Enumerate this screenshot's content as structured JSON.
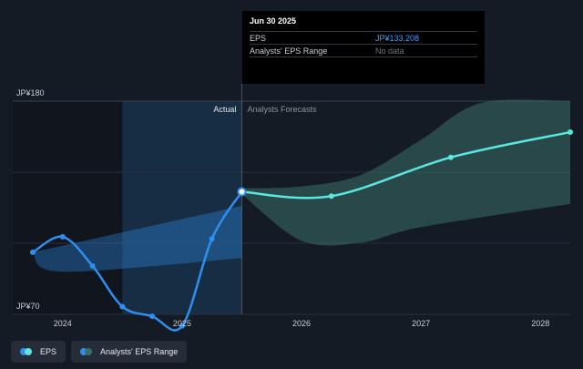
{
  "chart_data": {
    "type": "line",
    "y_ticks": [
      {
        "value": 180,
        "label": "JP¥180"
      },
      {
        "value": 70,
        "label": "JP¥70"
      }
    ],
    "ylim": [
      70,
      180
    ],
    "x_ticks": [
      {
        "value": 2024,
        "label": "2024"
      },
      {
        "value": 2025,
        "label": "2025"
      },
      {
        "value": 2026,
        "label": "2026"
      },
      {
        "value": 2027,
        "label": "2027"
      },
      {
        "value": 2028,
        "label": "2028"
      }
    ],
    "xlim": [
      2023.75,
      2028.25
    ],
    "divider_x": 2025.5,
    "highlight_range": [
      2024.5,
      2025.5
    ],
    "region_labels": {
      "actual": "Actual",
      "forecast": "Analysts Forecasts"
    },
    "grid": true,
    "series": [
      {
        "name": "EPS",
        "color": "#2f8ff0",
        "points": [
          {
            "x": 2023.75,
            "y": 102
          },
          {
            "x": 2024.0,
            "y": 110
          },
          {
            "x": 2024.25,
            "y": 95
          },
          {
            "x": 2024.5,
            "y": 74
          },
          {
            "x": 2024.75,
            "y": 69
          },
          {
            "x": 2025.0,
            "y": 64
          },
          {
            "x": 2025.25,
            "y": 109
          },
          {
            "x": 2025.5,
            "y": 133.208
          }
        ]
      },
      {
        "name": "EPS forecast",
        "color": "#5ce6e0",
        "points": [
          {
            "x": 2025.5,
            "y": 133.208
          },
          {
            "x": 2026.25,
            "y": 131
          },
          {
            "x": 2027.25,
            "y": 151
          },
          {
            "x": 2028.25,
            "y": 164
          }
        ]
      }
    ],
    "ranges": [
      {
        "name": "Analysts' EPS Range",
        "color": "#2f8ff0",
        "upper": [
          {
            "x": 2023.75,
            "y": 102
          },
          {
            "x": 2025.5,
            "y": 126
          }
        ],
        "lower": [
          {
            "x": 2023.75,
            "y": 102
          },
          {
            "x": 2024.0,
            "y": 92
          },
          {
            "x": 2025.5,
            "y": 99
          }
        ]
      },
      {
        "name": "Analysts' EPS Range forecast",
        "color": "#3b6e6a",
        "upper": [
          {
            "x": 2025.5,
            "y": 135
          },
          {
            "x": 2026.0,
            "y": 136
          },
          {
            "x": 2026.5,
            "y": 142
          },
          {
            "x": 2027.0,
            "y": 160
          },
          {
            "x": 2027.5,
            "y": 179
          },
          {
            "x": 2028.25,
            "y": 180
          }
        ],
        "lower": [
          {
            "x": 2025.5,
            "y": 132
          },
          {
            "x": 2026.0,
            "y": 108
          },
          {
            "x": 2026.5,
            "y": 107
          },
          {
            "x": 2027.0,
            "y": 115
          },
          {
            "x": 2028.25,
            "y": 127
          }
        ]
      }
    ]
  },
  "tooltip": {
    "date": "Jun 30 2025",
    "rows": [
      {
        "label": "EPS",
        "value": "JP¥133.208"
      },
      {
        "label": "Analysts' EPS Range",
        "value": "No data"
      }
    ]
  },
  "legend": {
    "items": [
      {
        "label": "EPS",
        "colors": [
          "#5ce6e0",
          "#2f8ff0"
        ]
      },
      {
        "label": "Analysts' EPS Range",
        "colors": [
          "#3b6e6a",
          "#2f8ff0"
        ]
      }
    ]
  }
}
